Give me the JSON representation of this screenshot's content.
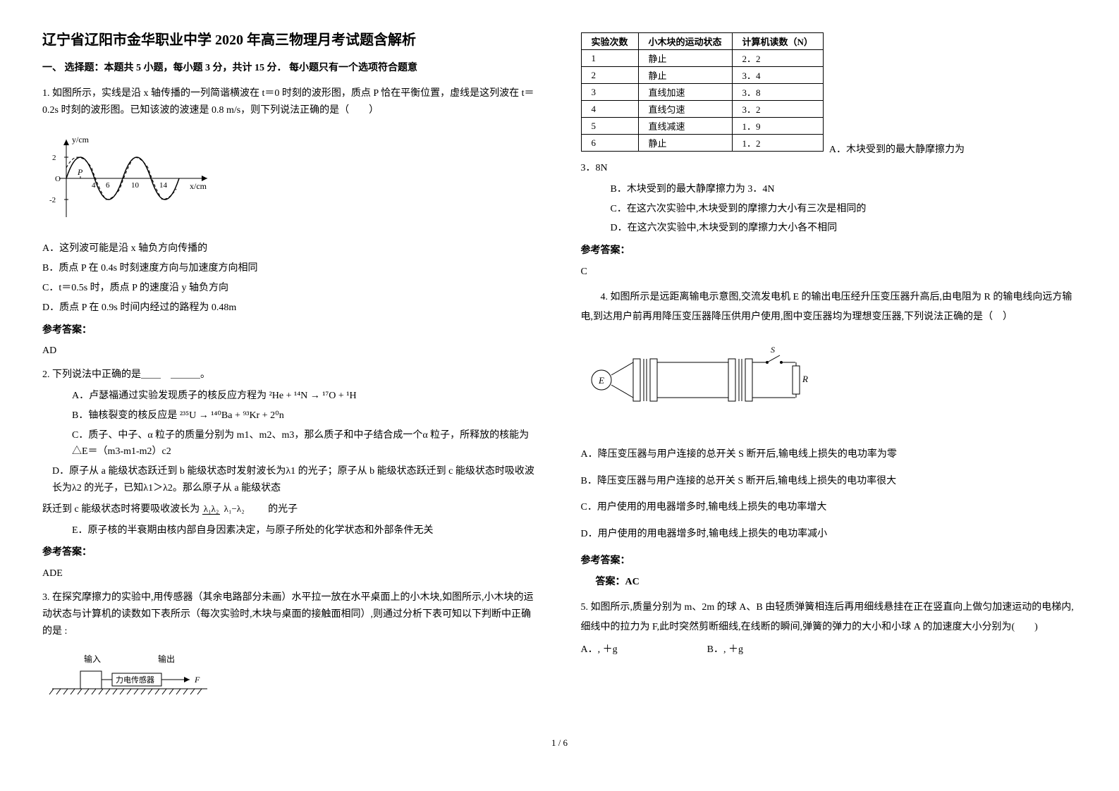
{
  "title": "辽宁省辽阳市金华职业中学 2020 年高三物理月考试题含解析",
  "section1_head": "一、 选择题：本题共 5 小题，每小题 3 分，共计 15 分． 每小题只有一个选项符合题意",
  "q1": {
    "stem": "1. 如图所示，实线是沿 x 轴传播的一列简谐横波在 t＝0 时刻的波形图，质点 P 恰在平衡位置，虚线是这列波在 t＝0.2s 时刻的波形图。已知该波的波速是 0.8 m/s，则下列说法正确的是（　　）",
    "a": "A．这列波可能是沿 x 轴负方向传播的",
    "b": "B．质点 P 在 0.4s 时刻速度方向与加速度方向相同",
    "c": "C．t＝0.5s 时，质点 P 的速度沿 y 轴负方向",
    "d": "D．质点 P 在 0.9s 时间内经过的路程为 0.48m",
    "ans_label": "参考答案：",
    "ans": "AD",
    "chart": {
      "xlabel": "x/cm",
      "ylabel": "y/cm",
      "xlim": [
        0,
        16
      ],
      "ylim": [
        -2.5,
        2.5
      ],
      "xticks": [
        4,
        6,
        10,
        14
      ],
      "xtick_labels": [
        "4",
        "6",
        "10",
        "14"
      ],
      "yticks": [
        -2,
        2
      ],
      "ytick_labels": [
        "-2",
        "2"
      ],
      "p_label": "P",
      "p_x": 2,
      "solid_wave": {
        "amplitude": 2,
        "wavelength": 8,
        "phase": 0,
        "color": "#000000"
      },
      "dashed_wave": {
        "amplitude": 2,
        "wavelength": 8,
        "phase_shift_cm": 1.6,
        "color": "#000000",
        "dash": "3,2"
      },
      "bg": "#ffffff"
    }
  },
  "q2": {
    "stem": "2. 下列说法中正确的是＿＿　＿＿＿。",
    "a": "A．卢瑟福通过实验发现质子的核反应方程为  ²He + ¹⁴N → ¹⁷O + ¹H",
    "b": "B．铀核裂变的核反应是  ²³⁵U → ¹⁴⁰Ba + ⁹³Kr + 2⁰n",
    "c": "C．质子、中子、α 粒子的质量分别为 m1、m2、m3，那么质子和中子结合成一个α 粒子，所释放的核能为 △E＝（m3-m1-m2）c2",
    "d": "D．原子从 a 能级状态跃迁到 b 能级状态时发射波长为λ1 的光子；原子从 b 能级状态跃迁到 c 能级状态时吸收波长为λ2 的光子，已知λ1＞λ2。那么原子从 a 能级状态",
    "d_cont": "跃迁到 c 能级状态时将要吸收波长为",
    "d_tail": "的光子",
    "frac_num": "λ₁λ₂",
    "frac_den": "λ₁−λ₂",
    "e": "E．原子核的半衰期由核内部自身因素决定，与原子所处的化学状态和外部条件无关",
    "ans_label": "参考答案：",
    "ans": "ADE"
  },
  "q3": {
    "stem": "3. 在探究摩擦力的实验中,用传感器（其余电路部分未画）水平拉一放在水平桌面上的小木块,如图所示,小木块的运动状态与计算机的读数如下表所示（每次实验时,木块与桌面的接触面相同）,则通过分析下表可知以下判断中正确的是 :",
    "sensor_fig": {
      "input_label": "输入",
      "output_label": "输出",
      "sensor_label": "力电传感器",
      "arrow_label": "F"
    },
    "table": {
      "headers": [
        "实验次数",
        "小木块的运动状态",
        "计算机读数（N）"
      ],
      "rows": [
        [
          "1",
          "静止",
          "2．2"
        ],
        [
          "2",
          "静止",
          "3．4"
        ],
        [
          "3",
          "直线加速",
          "3．8"
        ],
        [
          "4",
          "直线匀速",
          "3．2"
        ],
        [
          "5",
          "直线减速",
          "1．9"
        ],
        [
          "6",
          "静止",
          "1．2"
        ]
      ]
    },
    "side_a": "A．木块受到的最大静摩擦力为",
    "a_val": "3．8N",
    "b": "B．木块受到的最大静摩擦力为 3．4N",
    "c": "C．在这六次实验中,木块受到的摩擦力大小有三次是相同的",
    "d": "D．在这六次实验中,木块受到的摩擦力大小各不相同",
    "ans_label": "参考答案：",
    "ans": "C"
  },
  "q4": {
    "stem": "4. 如图所示是远距离输电示意图,交流发电机 E 的输出电压经升压变压器升高后,由电阻为 R 的输电线向远方输电,到达用户前再用降压变压器降压供用户使用,图中变压器均为理想变压器,下列说法正确的是（　）",
    "circuit": {
      "e_label": "E",
      "r_label": "R",
      "s_label": "S"
    },
    "a": "A．降压变压器与用户连接的总开关 S 断开后,输电线上损失的电功率为零",
    "b": "B．降压变压器与用户连接的总开关 S 断开后,输电线上损失的电功率很大",
    "c": "C．用户使用的用电器增多时,输电线上损失的电功率增大",
    "d": "D．用户使用的用电器增多时,输电线上损失的电功率减小",
    "ans_label": "参考答案：",
    "ans": "答案：AC"
  },
  "q5": {
    "stem": "5. 如图所示,质量分别为 m、2m 的球 A、B 由轻质弹簧相连后再用细线悬挂在正在竖直向上做匀加速运动的电梯内,细线中的拉力为 F,此时突然剪断细线,在线断的瞬间,弹簧的弹力的大小和小球 A 的加速度大小分别为(　　)",
    "a": "A．, ＋g",
    "b": "B．, ＋g"
  },
  "page_num": "1 / 6"
}
